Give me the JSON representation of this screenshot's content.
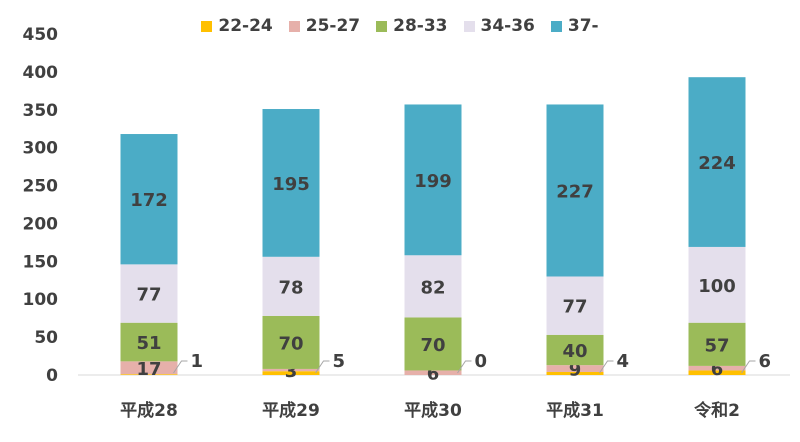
{
  "chart_data": {
    "type": "bar",
    "stacked": true,
    "categories": [
      "平成28",
      "平成29",
      "平成30",
      "平成31",
      "令和2"
    ],
    "ylim": [
      0,
      450
    ],
    "yticks": [
      0,
      50,
      100,
      150,
      200,
      250,
      300,
      350,
      400,
      450
    ],
    "grid": false,
    "legend_position": "top",
    "series": [
      {
        "name": "22-24",
        "color": "#ffc000",
        "values": [
          1,
          5,
          0,
          4,
          6
        ]
      },
      {
        "name": "25-27",
        "color": "#e6b0aa",
        "values": [
          17,
          3,
          6,
          9,
          6
        ]
      },
      {
        "name": "28-33",
        "color": "#9bbb59",
        "values": [
          51,
          70,
          70,
          40,
          57
        ]
      },
      {
        "name": "34-36",
        "color": "#e4dfec",
        "values": [
          77,
          78,
          82,
          77,
          100
        ]
      },
      {
        "name": "37-",
        "color": "#4bacc6",
        "values": [
          172,
          195,
          199,
          227,
          224
        ]
      }
    ]
  }
}
